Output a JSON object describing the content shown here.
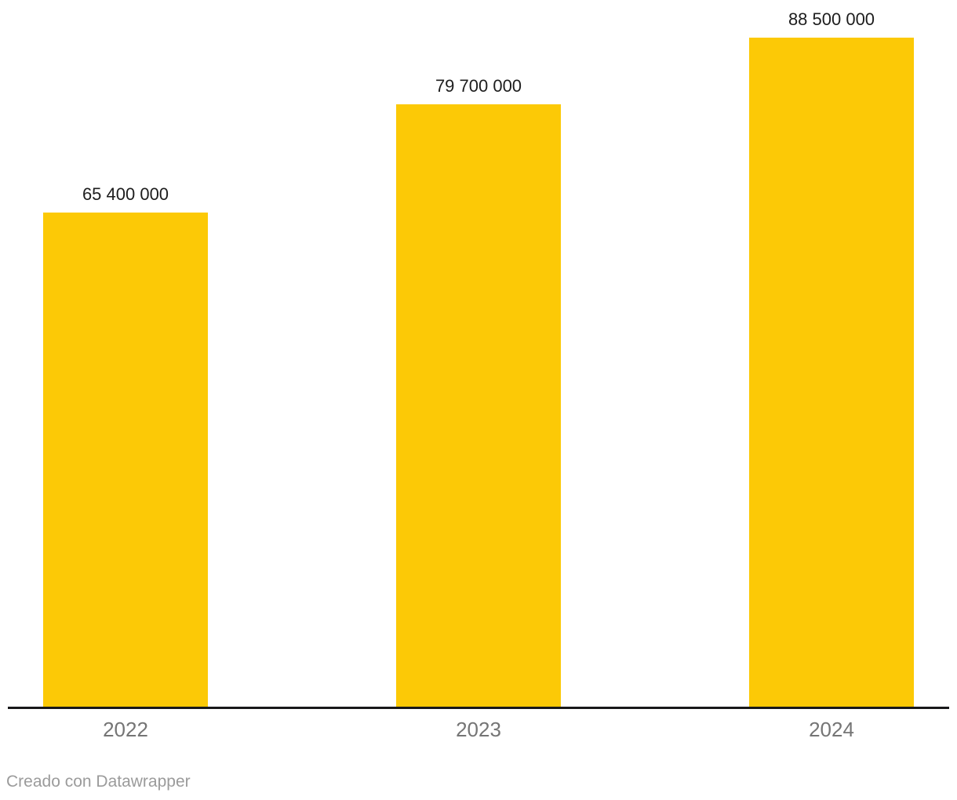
{
  "chart_data": {
    "type": "bar",
    "categories": [
      "2022",
      "2023",
      "2024"
    ],
    "values": [
      65400000,
      79700000,
      88500000
    ],
    "value_labels": [
      "65 400 000",
      "79 700 000",
      "88 500 000"
    ],
    "title": "",
    "xlabel": "",
    "ylabel": "",
    "ylim": [
      0,
      93400000
    ],
    "grid": false,
    "legend": "none",
    "bar_color": "#FCC906",
    "baseline_color": "#18181A",
    "value_label_color": "#1D1D1D",
    "tick_label_color": "#757575"
  },
  "footer": {
    "attribution": "Creado con Datawrapper"
  }
}
